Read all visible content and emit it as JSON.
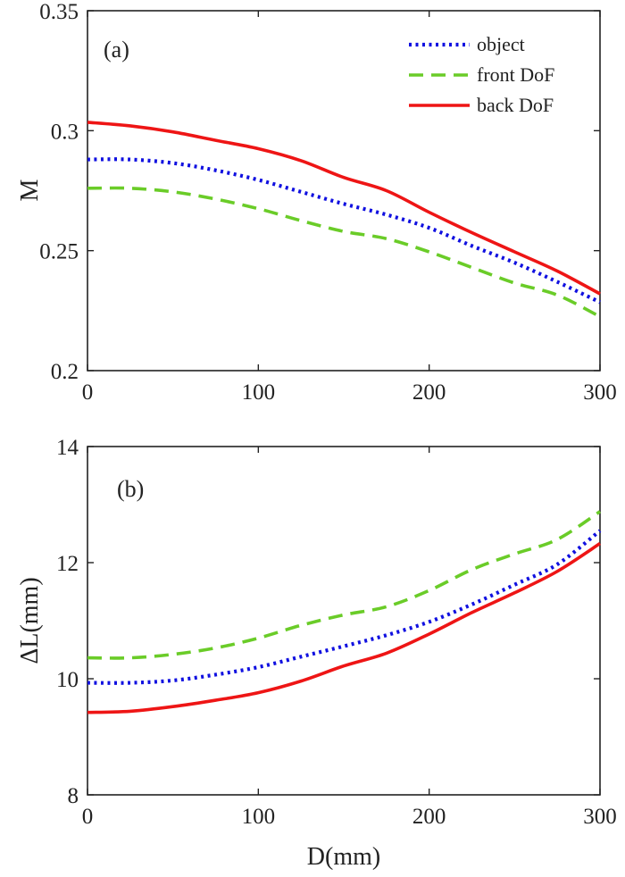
{
  "chart_data": [
    {
      "type": "line",
      "panel_label": "(a)",
      "title": "",
      "xlabel": "",
      "ylabel": "M",
      "xlim": [
        0,
        300
      ],
      "ylim": [
        0.2,
        0.35
      ],
      "xticks": [
        "0",
        "100",
        "200",
        "300"
      ],
      "yticks": [
        "0.2",
        "0.25",
        "0.3",
        "0.35"
      ],
      "legend_position": "top-right",
      "grid": false,
      "x": [
        0,
        25,
        50,
        75,
        100,
        125,
        150,
        175,
        200,
        225,
        250,
        275,
        300
      ],
      "series": [
        {
          "name": "object",
          "style": "dotted",
          "color": "#1010e0",
          "values": [
            0.288,
            0.288,
            0.2865,
            0.2835,
            0.2795,
            0.2745,
            0.2695,
            0.265,
            0.2595,
            0.252,
            0.245,
            0.237,
            0.2285
          ]
        },
        {
          "name": "front DoF",
          "style": "dashed",
          "color": "#6acc28",
          "values": [
            0.276,
            0.276,
            0.2745,
            0.2715,
            0.2675,
            0.2625,
            0.258,
            0.255,
            0.2495,
            0.243,
            0.2365,
            0.2315,
            0.2225
          ]
        },
        {
          "name": "back DoF",
          "style": "solid",
          "color": "#ee1515",
          "values": [
            0.3035,
            0.302,
            0.2995,
            0.296,
            0.2925,
            0.2875,
            0.2805,
            0.275,
            0.266,
            0.2575,
            0.2495,
            0.2415,
            0.232
          ]
        }
      ]
    },
    {
      "type": "line",
      "panel_label": "(b)",
      "title": "",
      "xlabel": "D(mm)",
      "ylabel": "ΔL(mm)",
      "xlim": [
        0,
        300
      ],
      "ylim": [
        8,
        14
      ],
      "xticks": [
        "0",
        "100",
        "200",
        "300"
      ],
      "yticks": [
        "8",
        "10",
        "12",
        "14"
      ],
      "grid": false,
      "x": [
        0,
        25,
        50,
        75,
        100,
        125,
        150,
        175,
        200,
        225,
        250,
        275,
        300
      ],
      "series": [
        {
          "name": "object",
          "style": "dotted",
          "color": "#1010e0",
          "values": [
            9.93,
            9.93,
            9.97,
            10.07,
            10.2,
            10.38,
            10.56,
            10.75,
            10.98,
            11.28,
            11.62,
            11.97,
            12.55
          ]
        },
        {
          "name": "front DoF",
          "style": "dashed",
          "color": "#6acc28",
          "values": [
            10.36,
            10.36,
            10.42,
            10.53,
            10.7,
            10.92,
            11.1,
            11.24,
            11.52,
            11.88,
            12.15,
            12.4,
            12.88
          ]
        },
        {
          "name": "back DoF",
          "style": "solid",
          "color": "#ee1515",
          "values": [
            9.42,
            9.44,
            9.52,
            9.63,
            9.76,
            9.96,
            10.22,
            10.44,
            10.77,
            11.14,
            11.48,
            11.85,
            12.33
          ]
        }
      ]
    }
  ]
}
